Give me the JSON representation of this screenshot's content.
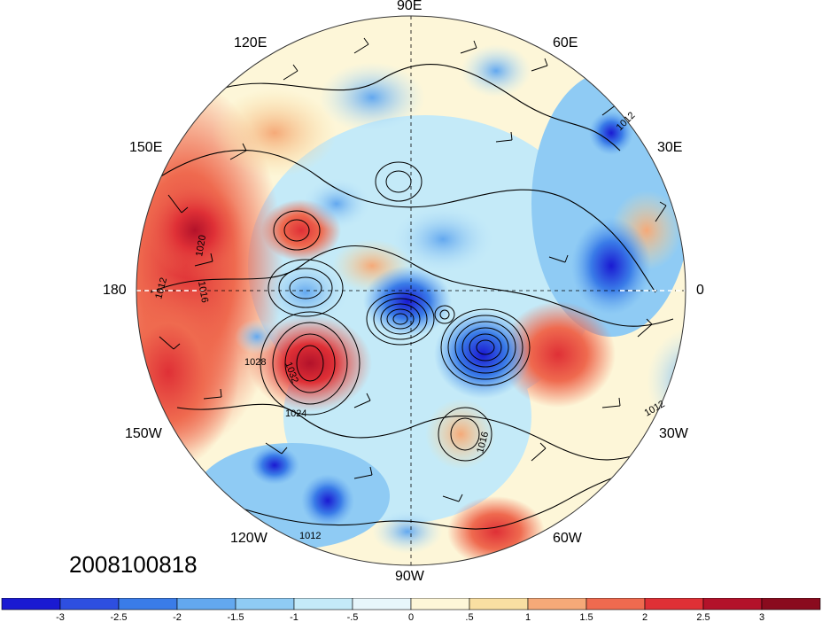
{
  "map": {
    "projection": "north-polar-stereographic",
    "datestamp": "2008100818",
    "lon_labels": {
      "e90": "90E",
      "e120": "120E",
      "e60": "60E",
      "e150": "150E",
      "e30": "30E",
      "d180": "180",
      "zero": "0",
      "w150": "150W",
      "w30": "30W",
      "w120": "120W",
      "w60": "60W",
      "w90": "90W"
    },
    "contour_labels": [
      "1012",
      "1016",
      "1020",
      "1024",
      "1028",
      "1032"
    ]
  },
  "colorbar": {
    "tick_labels": [
      "-3",
      "-2.5",
      "-2",
      "-1.5",
      "-1",
      "-.5",
      "0",
      ".5",
      "1",
      "1.5",
      "2",
      "2.5",
      "3"
    ],
    "colors": [
      "#1a1ad2",
      "#2e4fe0",
      "#3a7ce8",
      "#63a8ef",
      "#8fcbf4",
      "#c4eaf8",
      "#e7f6fb",
      "#fdf6d8",
      "#f9dfa2",
      "#f5a978",
      "#ef6a4f",
      "#df3036",
      "#b3122a",
      "#8a0b1e"
    ]
  }
}
